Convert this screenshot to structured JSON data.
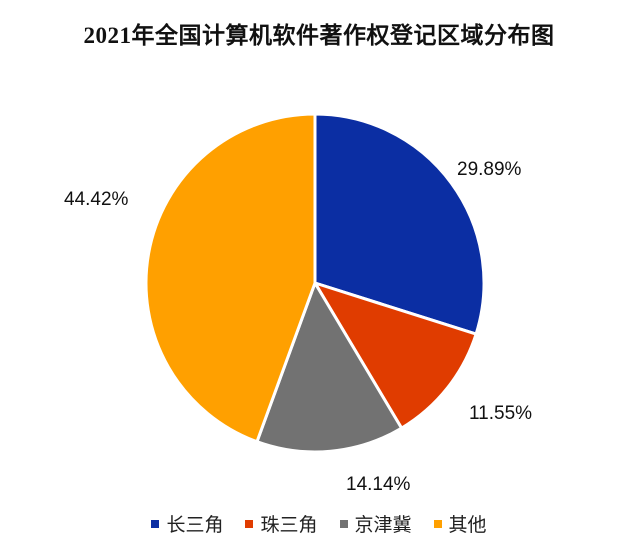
{
  "chart_data": {
    "type": "pie",
    "title": "2021年全国计算机软件著作权登记区域分布图",
    "categories": [
      "长三角",
      "珠三角",
      "京津冀",
      "其他"
    ],
    "values": [
      29.89,
      11.55,
      14.14,
      44.42
    ],
    "labels": [
      "29.89%",
      "11.55%",
      "14.14%",
      "44.42%"
    ],
    "colors": [
      "#0b2ea3",
      "#e03c00",
      "#727272",
      "#ffa000"
    ],
    "legend_position": "bottom",
    "start_angle_deg": 0,
    "direction": "clockwise"
  },
  "legend": {
    "items": [
      {
        "label": "长三角",
        "color": "#0b2ea3"
      },
      {
        "label": "珠三角",
        "color": "#e03c00"
      },
      {
        "label": "京津冀",
        "color": "#727272"
      },
      {
        "label": "其他",
        "color": "#ffa000"
      }
    ]
  }
}
